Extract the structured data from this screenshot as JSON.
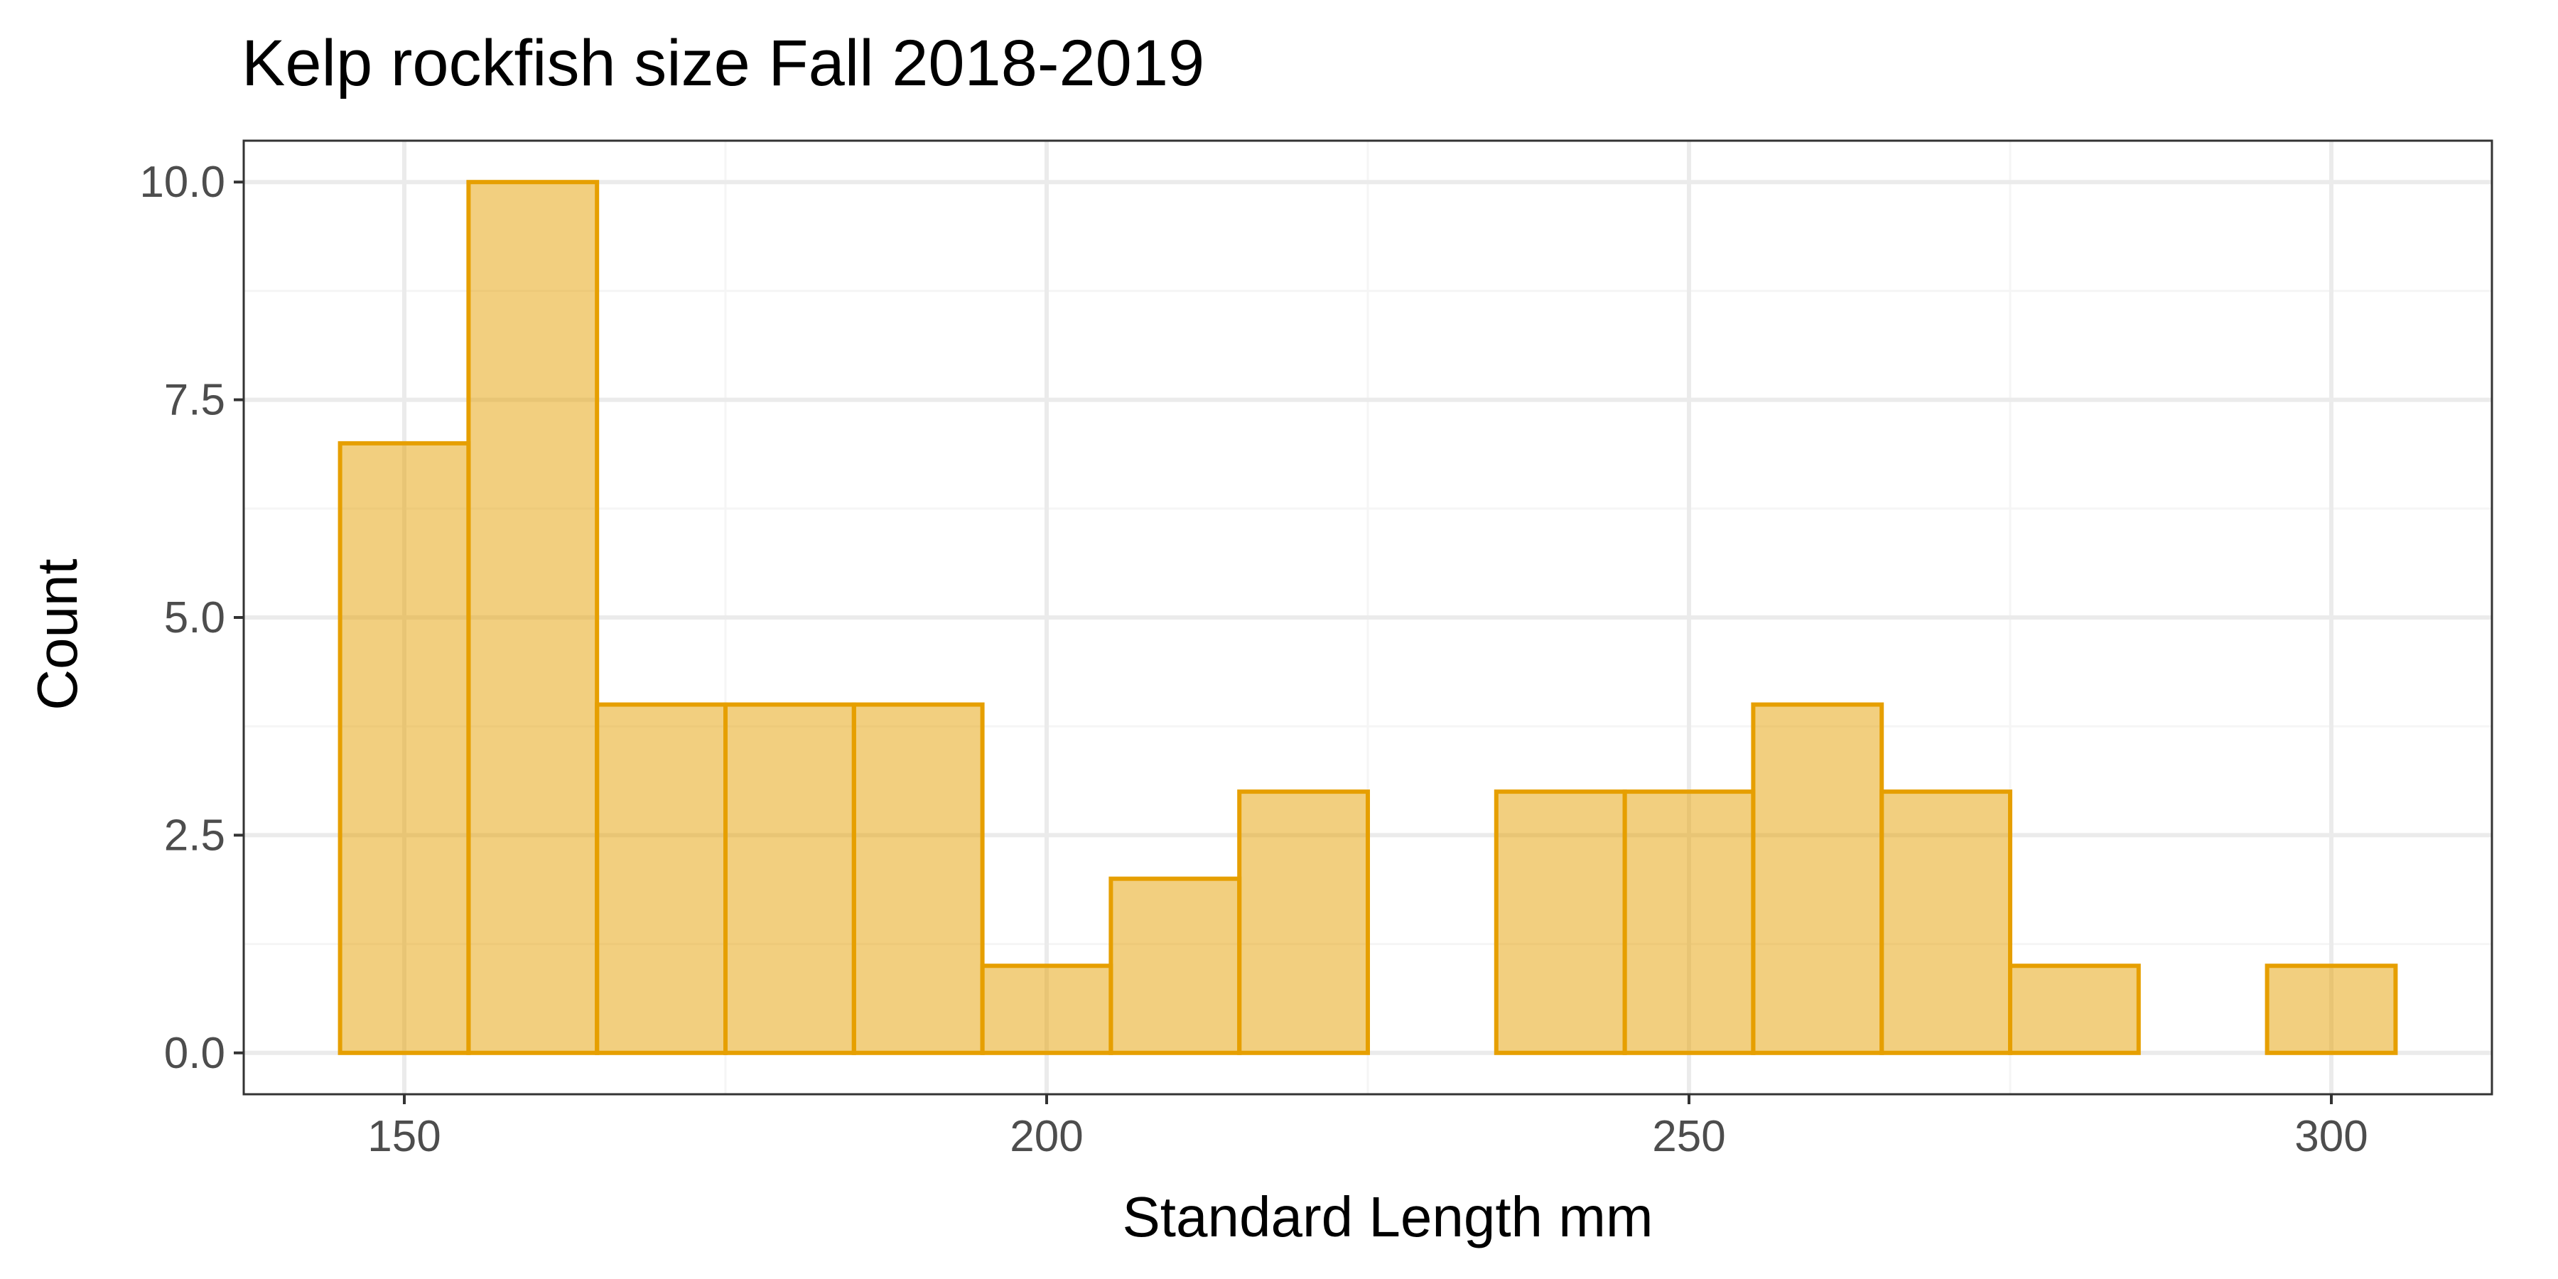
{
  "chart_data": {
    "type": "bar",
    "title": "Kelp rockfish size Fall 2018-2019",
    "xlabel": "Standard Length mm",
    "ylabel": "Count",
    "xlim": [
      137.5,
      312.5
    ],
    "ylim": [
      -0.475,
      10.475
    ],
    "x_ticks": [
      150,
      200,
      250,
      300
    ],
    "x_tick_labels": [
      "150",
      "200",
      "250",
      "300"
    ],
    "y_ticks": [
      0,
      2.5,
      5,
      7.5,
      10
    ],
    "y_tick_labels": [
      "0.0",
      "2.5",
      "5.0",
      "7.5",
      "10.0"
    ],
    "bin_width": 10,
    "bins": [
      {
        "x": 150,
        "count": 7
      },
      {
        "x": 160,
        "count": 10
      },
      {
        "x": 170,
        "count": 4
      },
      {
        "x": 180,
        "count": 4
      },
      {
        "x": 190,
        "count": 4
      },
      {
        "x": 200,
        "count": 1
      },
      {
        "x": 210,
        "count": 2
      },
      {
        "x": 220,
        "count": 3
      },
      {
        "x": 230,
        "count": 0
      },
      {
        "x": 240,
        "count": 3
      },
      {
        "x": 250,
        "count": 3
      },
      {
        "x": 260,
        "count": 4
      },
      {
        "x": 270,
        "count": 3
      },
      {
        "x": 280,
        "count": 1
      },
      {
        "x": 290,
        "count": 0
      },
      {
        "x": 300,
        "count": 1
      }
    ],
    "grid": true,
    "legend": "none",
    "bar_fill": "#e69f00",
    "bar_fill_opacity": 0.5,
    "bar_stroke": "#e69f00",
    "panel_border": "#333333",
    "grid_major": "#ebebeb",
    "grid_minor": "#f5f5f5"
  }
}
